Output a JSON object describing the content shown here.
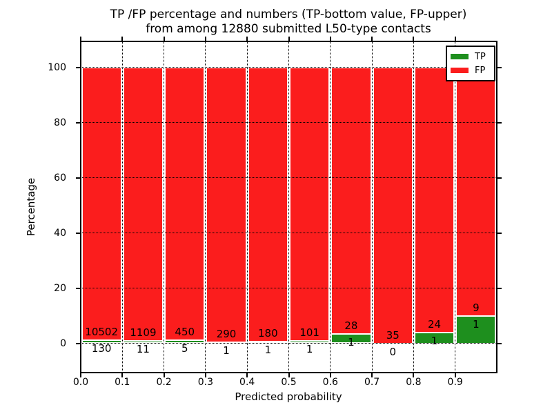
{
  "chart_data": {
    "type": "bar",
    "stacked": true,
    "title_line1": "TP /FP percentage and numbers (TP-bottom value, FP-upper)",
    "title_line2": "from among 12880 submitted L50-type contacts",
    "xlabel": "Predicted probability",
    "ylabel": "Percentage",
    "xlim": [
      0.0,
      1.0
    ],
    "ylim": [
      -10.5,
      109.5
    ],
    "x_tick_labels": [
      "0.0",
      "0.1",
      "0.2",
      "0.3",
      "0.4",
      "0.5",
      "0.6",
      "0.7",
      "0.8",
      "0.9"
    ],
    "y_tick_values": [
      0,
      20,
      40,
      60,
      80,
      100
    ],
    "y_tick_labels": [
      "0",
      "20",
      "40",
      "60",
      "80",
      "100"
    ],
    "grid": "dotted",
    "legend_position": "upper right",
    "legend": [
      {
        "label": "TP",
        "color": "#1e8f1e"
      },
      {
        "label": "FP",
        "color": "#fb1d1d"
      }
    ],
    "colors": {
      "tp": "#1e8f1e",
      "fp": "#fb1d1d"
    },
    "bars": [
      {
        "range": [
          0.0,
          0.1
        ],
        "tp": 130,
        "fp": 10502
      },
      {
        "range": [
          0.1,
          0.2
        ],
        "tp": 11,
        "fp": 1109
      },
      {
        "range": [
          0.2,
          0.3
        ],
        "tp": 5,
        "fp": 450
      },
      {
        "range": [
          0.3,
          0.4
        ],
        "tp": 1,
        "fp": 290
      },
      {
        "range": [
          0.4,
          0.5
        ],
        "tp": 1,
        "fp": 180
      },
      {
        "range": [
          0.5,
          0.6
        ],
        "tp": 1,
        "fp": 101
      },
      {
        "range": [
          0.6,
          0.7
        ],
        "tp": 1,
        "fp": 28
      },
      {
        "range": [
          0.7,
          0.8
        ],
        "tp": 0,
        "fp": 35
      },
      {
        "range": [
          0.8,
          0.9
        ],
        "tp": 1,
        "fp": 24
      },
      {
        "range": [
          0.9,
          1.0
        ],
        "tp": 1,
        "fp": 9
      }
    ]
  }
}
